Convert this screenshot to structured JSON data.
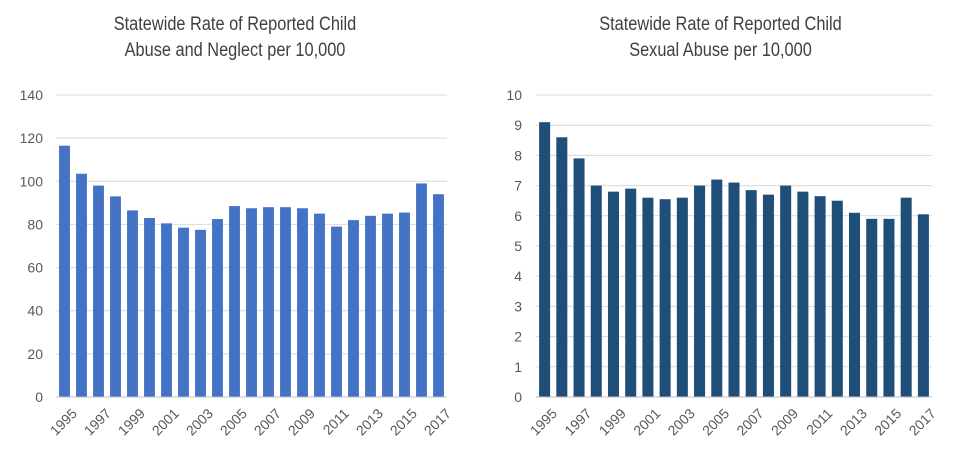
{
  "chart_data": [
    {
      "type": "bar",
      "title_lines": [
        "Statewide Rate of Reported Child",
        "Abuse and Neglect per 10,000"
      ],
      "xlabel": "",
      "ylabel": "",
      "ylim": [
        0,
        140
      ],
      "yticks": [
        0,
        20,
        40,
        60,
        80,
        100,
        120,
        140
      ],
      "grid": true,
      "legend": "none",
      "color": "#4472C4",
      "categories": [
        "1995",
        "1996",
        "1997",
        "1998",
        "1999",
        "2000",
        "2001",
        "2002",
        "2003",
        "2004",
        "2005",
        "2006",
        "2007",
        "2008",
        "2009",
        "2010",
        "2011",
        "2012",
        "2013",
        "2014",
        "2015",
        "2016",
        "2017"
      ],
      "tick_labels": [
        "1995",
        "1997",
        "1999",
        "2001",
        "2003",
        "2005",
        "2007",
        "2009",
        "2011",
        "2013",
        "2015",
        "2017"
      ],
      "values": [
        116.5,
        103.5,
        98,
        93,
        86.5,
        83,
        80.5,
        78.5,
        77.5,
        82.5,
        88.5,
        87.5,
        88,
        88,
        87.5,
        85,
        79,
        82,
        84,
        85,
        85.5,
        99,
        94
      ]
    },
    {
      "type": "bar",
      "title_lines": [
        "Statewide Rate of Reported Child",
        "Sexual Abuse per 10,000"
      ],
      "xlabel": "",
      "ylabel": "",
      "ylim": [
        0,
        10
      ],
      "yticks": [
        0,
        1,
        2,
        3,
        4,
        5,
        6,
        7,
        8,
        9,
        10
      ],
      "grid": true,
      "legend": "none",
      "color": "#1F4E79",
      "categories": [
        "1995",
        "1996",
        "1997",
        "1998",
        "1999",
        "2000",
        "2001",
        "2002",
        "2003",
        "2004",
        "2005",
        "2006",
        "2007",
        "2008",
        "2009",
        "2010",
        "2011",
        "2012",
        "2013",
        "2014",
        "2015",
        "2016",
        "2017"
      ],
      "tick_labels": [
        "1995",
        "1997",
        "1999",
        "2001",
        "2003",
        "2005",
        "2007",
        "2009",
        "2011",
        "2013",
        "2015",
        "2017"
      ],
      "values": [
        9.1,
        8.6,
        7.9,
        7.0,
        6.8,
        6.9,
        6.6,
        6.55,
        6.6,
        7.0,
        7.2,
        7.1,
        6.85,
        6.7,
        7.0,
        6.8,
        6.65,
        6.5,
        6.1,
        5.9,
        5.9,
        6.6,
        6.05
      ]
    }
  ]
}
